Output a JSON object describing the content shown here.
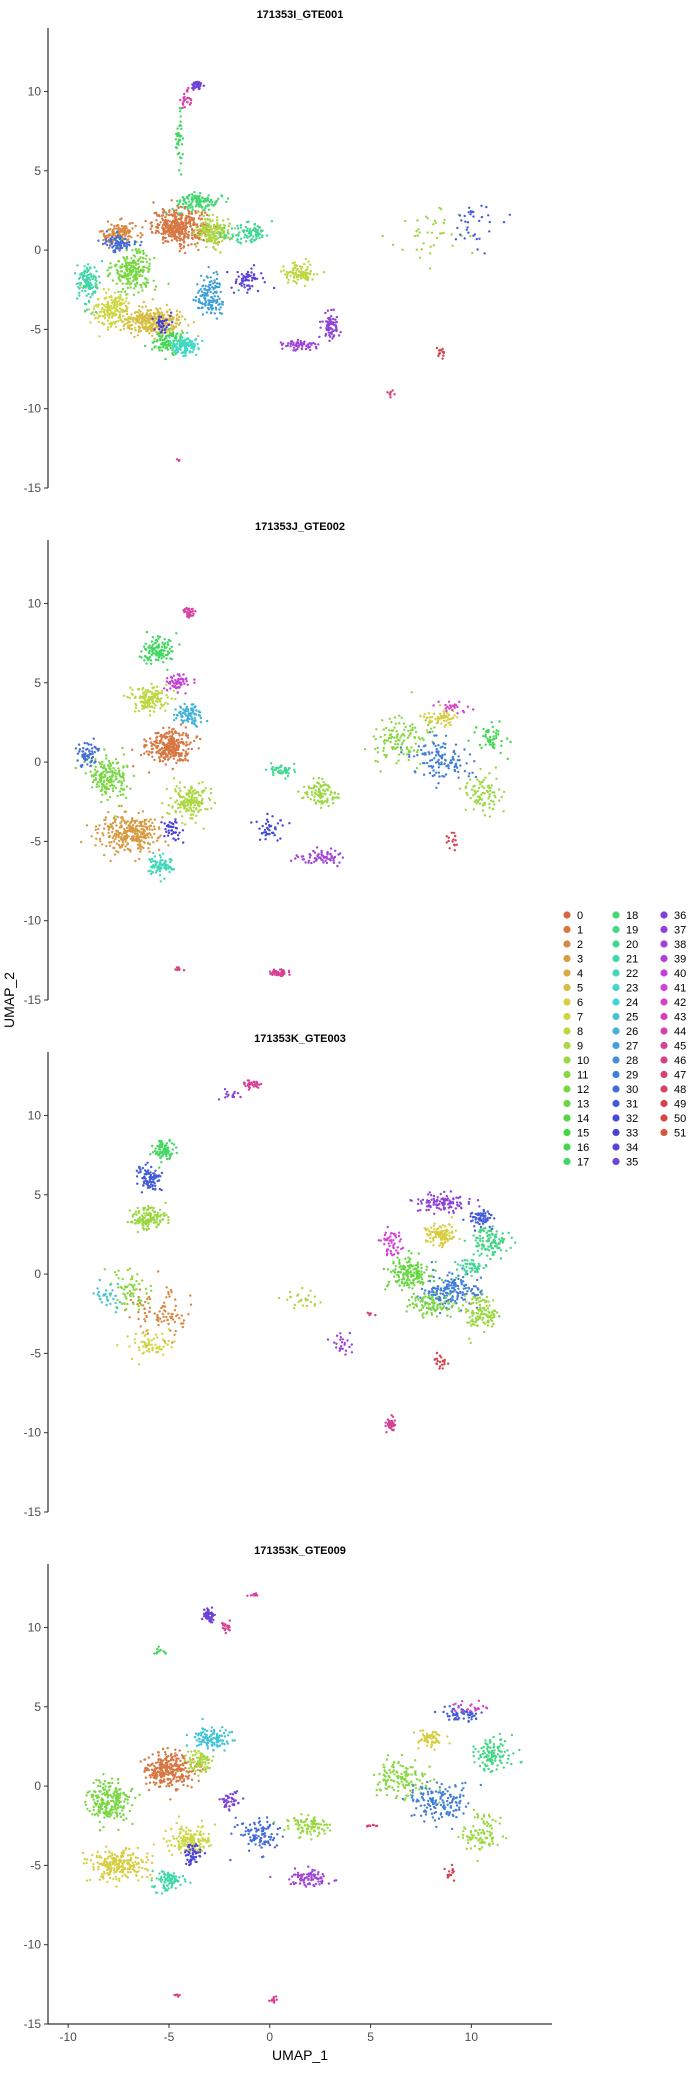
{
  "chart_data": {
    "type": "scatter",
    "xlabel": "UMAP_1",
    "ylabel": "UMAP_2",
    "xlim": [
      -11,
      14
    ],
    "ylim": [
      -15,
      14
    ],
    "x_ticks": [
      -10,
      -5,
      0,
      5,
      10
    ],
    "y_ticks": [
      -15,
      -10,
      -5,
      0,
      5,
      10
    ],
    "grid": false,
    "legend_placement": "right",
    "legend_title": "",
    "legend_entries": [
      "0",
      "1",
      "2",
      "3",
      "4",
      "5",
      "6",
      "7",
      "8",
      "9",
      "10",
      "11",
      "12",
      "13",
      "14",
      "15",
      "16",
      "17",
      "18",
      "19",
      "20",
      "21",
      "22",
      "23",
      "24",
      "25",
      "26",
      "27",
      "28",
      "29",
      "30",
      "31",
      "32",
      "33",
      "34",
      "35",
      "36",
      "37",
      "38",
      "39",
      "40",
      "41",
      "42",
      "43",
      "44",
      "45",
      "46",
      "47",
      "48",
      "49",
      "50",
      "51"
    ],
    "panels": [
      {
        "title": "171353I_GTE001",
        "clusters": [
          {
            "c": 1,
            "x": -4.5,
            "y": 1.5,
            "sx": 1.2,
            "sy": 1.0,
            "n": 380
          },
          {
            "c": 2,
            "x": -7.5,
            "y": 1.0,
            "sx": 0.8,
            "sy": 0.7,
            "n": 120
          },
          {
            "c": 5,
            "x": -5.8,
            "y": -4.5,
            "sx": 1.4,
            "sy": 0.8,
            "n": 330
          },
          {
            "c": 7,
            "x": -7.8,
            "y": -3.8,
            "sx": 0.9,
            "sy": 1.0,
            "n": 170
          },
          {
            "c": 9,
            "x": -2.8,
            "y": 1.2,
            "sx": 0.8,
            "sy": 0.9,
            "n": 160
          },
          {
            "c": 12,
            "x": -6.8,
            "y": -1.3,
            "sx": 0.9,
            "sy": 1.1,
            "n": 220
          },
          {
            "c": 16,
            "x": -5.0,
            "y": -5.8,
            "sx": 0.8,
            "sy": 0.6,
            "n": 100
          },
          {
            "c": 18,
            "x": -3.5,
            "y": 3.0,
            "sx": 1.0,
            "sy": 0.5,
            "n": 120
          },
          {
            "c": 21,
            "x": -9.0,
            "y": -2.0,
            "sx": 0.5,
            "sy": 1.2,
            "n": 120
          },
          {
            "c": 23,
            "x": -4.2,
            "y": -6.0,
            "sx": 0.6,
            "sy": 0.5,
            "n": 110
          },
          {
            "c": 27,
            "x": -3.0,
            "y": -3.0,
            "sx": 0.7,
            "sy": 1.2,
            "n": 140
          },
          {
            "c": 30,
            "x": -7.5,
            "y": 0.5,
            "sx": 0.6,
            "sy": 0.5,
            "n": 80
          },
          {
            "c": 33,
            "x": -5.4,
            "y": -4.7,
            "sx": 0.4,
            "sy": 0.6,
            "n": 40
          },
          {
            "c": 34,
            "x": -1.0,
            "y": -1.8,
            "sx": 0.7,
            "sy": 0.8,
            "n": 60
          },
          {
            "c": 37,
            "x": 3.0,
            "y": -4.8,
            "sx": 0.4,
            "sy": 0.8,
            "n": 70
          },
          {
            "c": 38,
            "x": 1.5,
            "y": -6.0,
            "sx": 1.0,
            "sy": 0.3,
            "n": 60
          },
          {
            "c": 20,
            "x": -1.0,
            "y": 1.0,
            "sx": 1.0,
            "sy": 0.6,
            "n": 90
          },
          {
            "c": 8,
            "x": 1.5,
            "y": -1.5,
            "sx": 0.8,
            "sy": 0.6,
            "n": 90
          },
          {
            "c": 17,
            "x": -4.5,
            "y": 7.0,
            "sx": 0.2,
            "sy": 1.8,
            "n": 40
          },
          {
            "c": 44,
            "x": -4.2,
            "y": 9.5,
            "sx": 0.3,
            "sy": 0.6,
            "n": 25
          },
          {
            "c": 35,
            "x": -3.6,
            "y": 10.4,
            "sx": 0.25,
            "sy": 0.2,
            "n": 40
          },
          {
            "c": 10,
            "x": 8.0,
            "y": 1.0,
            "sx": 1.8,
            "sy": 1.5,
            "n": 40
          },
          {
            "c": 31,
            "x": 10.0,
            "y": 1.5,
            "sx": 1.2,
            "sy": 1.5,
            "n": 35
          },
          {
            "c": 49,
            "x": 8.5,
            "y": -6.5,
            "sx": 0.2,
            "sy": 0.4,
            "n": 15
          },
          {
            "c": 47,
            "x": 6.0,
            "y": -9.0,
            "sx": 0.2,
            "sy": 0.4,
            "n": 8
          },
          {
            "c": 45,
            "x": -4.5,
            "y": -13.3,
            "sx": 0.1,
            "sy": 0.1,
            "n": 3
          }
        ]
      },
      {
        "title": "171353J_GTE002",
        "clusters": [
          {
            "c": 1,
            "x": -5.0,
            "y": 1.0,
            "sx": 1.0,
            "sy": 1.0,
            "n": 300
          },
          {
            "c": 3,
            "x": -7.0,
            "y": -4.5,
            "sx": 1.4,
            "sy": 1.0,
            "n": 300
          },
          {
            "c": 8,
            "x": -6.0,
            "y": 4.0,
            "sx": 0.9,
            "sy": 0.7,
            "n": 140
          },
          {
            "c": 12,
            "x": -8.0,
            "y": -1.0,
            "sx": 0.9,
            "sy": 1.2,
            "n": 180
          },
          {
            "c": 17,
            "x": -5.5,
            "y": 7.0,
            "sx": 0.8,
            "sy": 0.8,
            "n": 120
          },
          {
            "c": 26,
            "x": -4.0,
            "y": 3.0,
            "sx": 0.7,
            "sy": 0.6,
            "n": 90
          },
          {
            "c": 40,
            "x": -4.5,
            "y": 5.0,
            "sx": 0.5,
            "sy": 0.5,
            "n": 60
          },
          {
            "c": 9,
            "x": -4.0,
            "y": -2.5,
            "sx": 0.9,
            "sy": 1.0,
            "n": 160
          },
          {
            "c": 22,
            "x": -5.5,
            "y": -6.5,
            "sx": 0.6,
            "sy": 0.6,
            "n": 80
          },
          {
            "c": 30,
            "x": -9.0,
            "y": 0.5,
            "sx": 0.5,
            "sy": 0.7,
            "n": 60
          },
          {
            "c": 33,
            "x": -4.8,
            "y": -4.3,
            "sx": 0.4,
            "sy": 0.6,
            "n": 40
          },
          {
            "c": 20,
            "x": 0.5,
            "y": -0.5,
            "sx": 0.6,
            "sy": 0.4,
            "n": 50
          },
          {
            "c": 10,
            "x": 2.5,
            "y": -2.0,
            "sx": 0.8,
            "sy": 0.7,
            "n": 90
          },
          {
            "c": 38,
            "x": 2.5,
            "y": -6.0,
            "sx": 1.0,
            "sy": 0.4,
            "n": 70
          },
          {
            "c": 32,
            "x": 0.0,
            "y": -4.0,
            "sx": 0.6,
            "sy": 0.8,
            "n": 40
          },
          {
            "c": 44,
            "x": -4.0,
            "y": 9.5,
            "sx": 0.3,
            "sy": 0.3,
            "n": 30
          },
          {
            "c": 11,
            "x": 6.5,
            "y": 1.5,
            "sx": 1.3,
            "sy": 1.3,
            "n": 120
          },
          {
            "c": 6,
            "x": 8.5,
            "y": 2.8,
            "sx": 0.8,
            "sy": 0.5,
            "n": 60
          },
          {
            "c": 29,
            "x": 8.5,
            "y": 0.0,
            "sx": 1.4,
            "sy": 1.2,
            "n": 120
          },
          {
            "c": 10,
            "x": 10.5,
            "y": -2.0,
            "sx": 0.8,
            "sy": 1.2,
            "n": 80
          },
          {
            "c": 16,
            "x": 11.0,
            "y": 1.5,
            "sx": 0.8,
            "sy": 1.0,
            "n": 50
          },
          {
            "c": 42,
            "x": 9.0,
            "y": 3.5,
            "sx": 0.8,
            "sy": 0.3,
            "n": 25
          },
          {
            "c": 45,
            "x": 0.5,
            "y": -13.3,
            "sx": 0.4,
            "sy": 0.2,
            "n": 60
          },
          {
            "c": 47,
            "x": -4.5,
            "y": -13.0,
            "sx": 0.2,
            "sy": 0.1,
            "n": 8
          },
          {
            "c": 49,
            "x": 9.0,
            "y": -5.0,
            "sx": 0.3,
            "sy": 0.6,
            "n": 15
          }
        ]
      },
      {
        "title": "171353K_GTE003",
        "clusters": [
          {
            "c": 10,
            "x": -6.0,
            "y": 3.5,
            "sx": 0.8,
            "sy": 0.7,
            "n": 140
          },
          {
            "c": 31,
            "x": -6.0,
            "y": 6.0,
            "sx": 0.6,
            "sy": 0.7,
            "n": 90
          },
          {
            "c": 17,
            "x": -5.2,
            "y": 7.8,
            "sx": 0.5,
            "sy": 0.6,
            "n": 80
          },
          {
            "c": 2,
            "x": -5.5,
            "y": -2.5,
            "sx": 1.3,
            "sy": 1.5,
            "n": 90
          },
          {
            "c": 11,
            "x": -7.0,
            "y": -1.0,
            "sx": 1.0,
            "sy": 1.2,
            "n": 70
          },
          {
            "c": 7,
            "x": -6.0,
            "y": -4.5,
            "sx": 1.0,
            "sy": 0.8,
            "n": 60
          },
          {
            "c": 25,
            "x": -8.0,
            "y": -1.5,
            "sx": 0.6,
            "sy": 0.8,
            "n": 30
          },
          {
            "c": 45,
            "x": -1.0,
            "y": 12.0,
            "sx": 0.5,
            "sy": 0.2,
            "n": 40
          },
          {
            "c": 37,
            "x": -2.0,
            "y": 11.3,
            "sx": 0.4,
            "sy": 0.3,
            "n": 15
          },
          {
            "c": 9,
            "x": 1.5,
            "y": -1.5,
            "sx": 1.0,
            "sy": 0.5,
            "n": 25
          },
          {
            "c": 38,
            "x": 3.5,
            "y": -4.5,
            "sx": 0.5,
            "sy": 0.7,
            "n": 25
          },
          {
            "c": 13,
            "x": 7.0,
            "y": 0.0,
            "sx": 1.0,
            "sy": 1.0,
            "n": 160
          },
          {
            "c": 6,
            "x": 8.5,
            "y": 2.5,
            "sx": 0.7,
            "sy": 0.6,
            "n": 110
          },
          {
            "c": 37,
            "x": 8.5,
            "y": 4.5,
            "sx": 1.2,
            "sy": 0.5,
            "n": 110
          },
          {
            "c": 41,
            "x": 6.0,
            "y": 2.0,
            "sx": 0.5,
            "sy": 0.8,
            "n": 50
          },
          {
            "c": 29,
            "x": 9.0,
            "y": -1.0,
            "sx": 1.3,
            "sy": 1.0,
            "n": 170
          },
          {
            "c": 19,
            "x": 11.0,
            "y": 2.0,
            "sx": 0.8,
            "sy": 0.9,
            "n": 110
          },
          {
            "c": 31,
            "x": 10.5,
            "y": 3.5,
            "sx": 0.6,
            "sy": 0.5,
            "n": 60
          },
          {
            "c": 12,
            "x": 8.0,
            "y": -2.0,
            "sx": 0.9,
            "sy": 0.7,
            "n": 90
          },
          {
            "c": 10,
            "x": 10.5,
            "y": -2.5,
            "sx": 0.8,
            "sy": 1.0,
            "n": 120
          },
          {
            "c": 20,
            "x": 10.0,
            "y": 0.5,
            "sx": 0.6,
            "sy": 0.5,
            "n": 50
          },
          {
            "c": 45,
            "x": 6.0,
            "y": -9.5,
            "sx": 0.2,
            "sy": 0.4,
            "n": 40
          },
          {
            "c": 49,
            "x": 8.5,
            "y": -5.5,
            "sx": 0.3,
            "sy": 0.5,
            "n": 20
          },
          {
            "c": 47,
            "x": 5.0,
            "y": -2.5,
            "sx": 0.2,
            "sy": 0.1,
            "n": 6
          }
        ]
      },
      {
        "title": "171353K_GTE009",
        "clusters": [
          {
            "c": 1,
            "x": -5.0,
            "y": 1.0,
            "sx": 1.1,
            "sy": 1.0,
            "n": 300
          },
          {
            "c": 6,
            "x": -7.5,
            "y": -5.0,
            "sx": 1.3,
            "sy": 0.9,
            "n": 220
          },
          {
            "c": 7,
            "x": -4.0,
            "y": -3.5,
            "sx": 1.0,
            "sy": 0.9,
            "n": 150
          },
          {
            "c": 12,
            "x": -8.0,
            "y": -1.0,
            "sx": 1.0,
            "sy": 1.2,
            "n": 220
          },
          {
            "c": 25,
            "x": -3.0,
            "y": 3.0,
            "sx": 0.9,
            "sy": 0.6,
            "n": 120
          },
          {
            "c": 9,
            "x": -3.5,
            "y": 1.5,
            "sx": 0.6,
            "sy": 0.7,
            "n": 80
          },
          {
            "c": 21,
            "x": -5.0,
            "y": -6.0,
            "sx": 0.7,
            "sy": 0.6,
            "n": 90
          },
          {
            "c": 33,
            "x": -3.8,
            "y": -4.3,
            "sx": 0.4,
            "sy": 0.6,
            "n": 50
          },
          {
            "c": 36,
            "x": -2.0,
            "y": -1.0,
            "sx": 0.5,
            "sy": 0.5,
            "n": 40
          },
          {
            "c": 30,
            "x": -0.5,
            "y": -3.0,
            "sx": 1.0,
            "sy": 1.0,
            "n": 100
          },
          {
            "c": 10,
            "x": 2.0,
            "y": -2.5,
            "sx": 0.9,
            "sy": 0.6,
            "n": 100
          },
          {
            "c": 38,
            "x": 2.0,
            "y": -5.8,
            "sx": 1.0,
            "sy": 0.5,
            "n": 80
          },
          {
            "c": 35,
            "x": -3.0,
            "y": 10.8,
            "sx": 0.25,
            "sy": 0.35,
            "n": 60
          },
          {
            "c": 45,
            "x": -2.2,
            "y": 10.0,
            "sx": 0.2,
            "sy": 0.3,
            "n": 20
          },
          {
            "c": 44,
            "x": -0.8,
            "y": 12.0,
            "sx": 0.2,
            "sy": 0.1,
            "n": 10
          },
          {
            "c": 17,
            "x": -5.5,
            "y": 8.5,
            "sx": 0.3,
            "sy": 0.2,
            "n": 12
          },
          {
            "c": 11,
            "x": 6.5,
            "y": 0.5,
            "sx": 1.2,
            "sy": 1.2,
            "n": 130
          },
          {
            "c": 6,
            "x": 8.0,
            "y": 3.0,
            "sx": 0.6,
            "sy": 0.5,
            "n": 60
          },
          {
            "c": 29,
            "x": 8.5,
            "y": -1.0,
            "sx": 1.3,
            "sy": 1.0,
            "n": 150
          },
          {
            "c": 19,
            "x": 11.0,
            "y": 2.0,
            "sx": 0.9,
            "sy": 1.0,
            "n": 110
          },
          {
            "c": 31,
            "x": 9.5,
            "y": 4.5,
            "sx": 1.0,
            "sy": 0.5,
            "n": 60
          },
          {
            "c": 10,
            "x": 10.5,
            "y": -3.0,
            "sx": 0.8,
            "sy": 0.9,
            "n": 90
          },
          {
            "c": 42,
            "x": 10.0,
            "y": 5.0,
            "sx": 0.8,
            "sy": 0.3,
            "n": 20
          },
          {
            "c": 49,
            "x": 9.0,
            "y": -5.5,
            "sx": 0.3,
            "sy": 0.5,
            "n": 15
          },
          {
            "c": 47,
            "x": 5.0,
            "y": -2.5,
            "sx": 0.3,
            "sy": 0.1,
            "n": 10
          },
          {
            "c": 45,
            "x": 0.2,
            "y": -13.5,
            "sx": 0.2,
            "sy": 0.2,
            "n": 12
          },
          {
            "c": 47,
            "x": -4.5,
            "y": -13.2,
            "sx": 0.2,
            "sy": 0.1,
            "n": 5
          }
        ]
      }
    ]
  }
}
